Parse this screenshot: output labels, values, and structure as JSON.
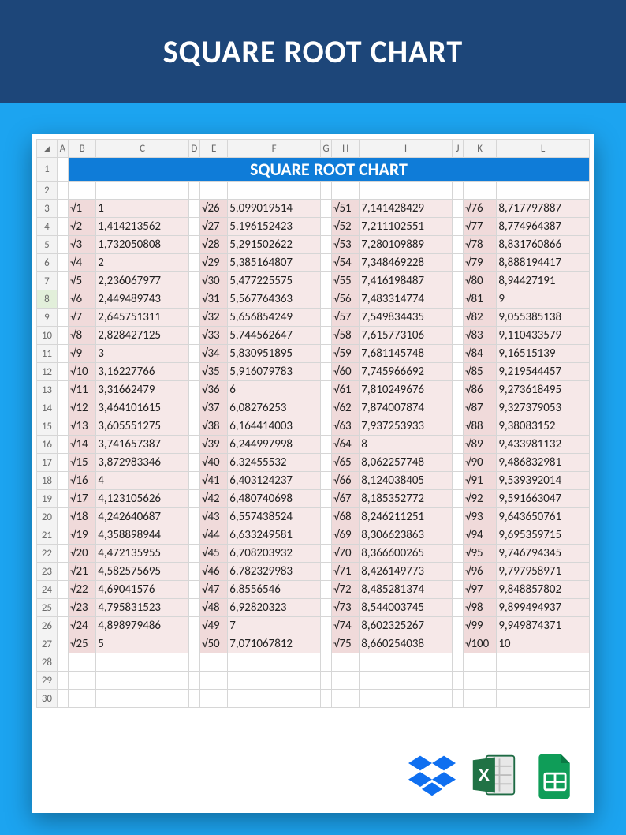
{
  "page": {
    "title": "SQUARE ROOT CHART",
    "background_color": "#1ca4f0",
    "header_bg": "#1d4679",
    "header_text_color": "#ffffff"
  },
  "spreadsheet": {
    "chart_title": "SQUARE ROOT CHART",
    "chart_title_bg": "#0f7cd8",
    "chart_title_color": "#ffffff",
    "column_headers": [
      "A",
      "B",
      "C",
      "D",
      "E",
      "F",
      "G",
      "H",
      "I",
      "J",
      "K",
      "L"
    ],
    "row_count": 30,
    "selected_row": 8,
    "cell_bg_label": "#f0dada",
    "cell_bg_value": "#f6e8e8",
    "gridline_color": "#d6d6d6",
    "header_bg": "#f3f3f3",
    "header_fg": "#6a6a6a",
    "font_size_pt": 11,
    "data_start_row": 3,
    "groups": [
      {
        "label_col": "B",
        "value_col": "C",
        "rows": [
          {
            "n": "√1",
            "v": "1"
          },
          {
            "n": "√2",
            "v": "1,414213562"
          },
          {
            "n": "√3",
            "v": "1,732050808"
          },
          {
            "n": "√4",
            "v": "2"
          },
          {
            "n": "√5",
            "v": "2,236067977"
          },
          {
            "n": "√6",
            "v": "2,449489743"
          },
          {
            "n": "√7",
            "v": "2,645751311"
          },
          {
            "n": "√8",
            "v": "2,828427125"
          },
          {
            "n": "√9",
            "v": "3"
          },
          {
            "n": "√10",
            "v": "3,16227766"
          },
          {
            "n": "√11",
            "v": "3,31662479"
          },
          {
            "n": "√12",
            "v": "3,464101615"
          },
          {
            "n": "√13",
            "v": "3,605551275"
          },
          {
            "n": "√14",
            "v": "3,741657387"
          },
          {
            "n": "√15",
            "v": "3,872983346"
          },
          {
            "n": "√16",
            "v": "4"
          },
          {
            "n": "√17",
            "v": "4,123105626"
          },
          {
            "n": "√18",
            "v": "4,242640687"
          },
          {
            "n": "√19",
            "v": "4,358898944"
          },
          {
            "n": "√20",
            "v": "4,472135955"
          },
          {
            "n": "√21",
            "v": "4,582575695"
          },
          {
            "n": "√22",
            "v": "4,69041576"
          },
          {
            "n": "√23",
            "v": "4,795831523"
          },
          {
            "n": "√24",
            "v": "4,898979486"
          },
          {
            "n": "√25",
            "v": "5"
          }
        ]
      },
      {
        "label_col": "E",
        "value_col": "F",
        "rows": [
          {
            "n": "√26",
            "v": "5,099019514"
          },
          {
            "n": "√27",
            "v": "5,196152423"
          },
          {
            "n": "√28",
            "v": "5,291502622"
          },
          {
            "n": "√29",
            "v": "5,385164807"
          },
          {
            "n": "√30",
            "v": "5,477225575"
          },
          {
            "n": "√31",
            "v": "5,567764363"
          },
          {
            "n": "√32",
            "v": "5,656854249"
          },
          {
            "n": "√33",
            "v": "5,744562647"
          },
          {
            "n": "√34",
            "v": "5,830951895"
          },
          {
            "n": "√35",
            "v": "5,916079783"
          },
          {
            "n": "√36",
            "v": "6"
          },
          {
            "n": "√37",
            "v": "6,08276253"
          },
          {
            "n": "√38",
            "v": "6,164414003"
          },
          {
            "n": "√39",
            "v": "6,244997998"
          },
          {
            "n": "√40",
            "v": "6,32455532"
          },
          {
            "n": "√41",
            "v": "6,403124237"
          },
          {
            "n": "√42",
            "v": "6,480740698"
          },
          {
            "n": "√43",
            "v": "6,557438524"
          },
          {
            "n": "√44",
            "v": "6,633249581"
          },
          {
            "n": "√45",
            "v": "6,708203932"
          },
          {
            "n": "√46",
            "v": "6,782329983"
          },
          {
            "n": "√47",
            "v": "6,8556546"
          },
          {
            "n": "√48",
            "v": "6,92820323"
          },
          {
            "n": "√49",
            "v": "7"
          },
          {
            "n": "√50",
            "v": "7,071067812"
          }
        ]
      },
      {
        "label_col": "H",
        "value_col": "I",
        "rows": [
          {
            "n": "√51",
            "v": "7,141428429"
          },
          {
            "n": "√52",
            "v": "7,211102551"
          },
          {
            "n": "√53",
            "v": "7,280109889"
          },
          {
            "n": "√54",
            "v": "7,348469228"
          },
          {
            "n": "√55",
            "v": "7,416198487"
          },
          {
            "n": "√56",
            "v": "7,483314774"
          },
          {
            "n": "√57",
            "v": "7,549834435"
          },
          {
            "n": "√58",
            "v": "7,615773106"
          },
          {
            "n": "√59",
            "v": "7,681145748"
          },
          {
            "n": "√60",
            "v": "7,745966692"
          },
          {
            "n": "√61",
            "v": "7,810249676"
          },
          {
            "n": "√62",
            "v": "7,874007874"
          },
          {
            "n": "√63",
            "v": "7,937253933"
          },
          {
            "n": "√64",
            "v": "8"
          },
          {
            "n": "√65",
            "v": "8,062257748"
          },
          {
            "n": "√66",
            "v": "8,124038405"
          },
          {
            "n": "√67",
            "v": "8,185352772"
          },
          {
            "n": "√68",
            "v": "8,246211251"
          },
          {
            "n": "√69",
            "v": "8,306623863"
          },
          {
            "n": "√70",
            "v": "8,366600265"
          },
          {
            "n": "√71",
            "v": "8,426149773"
          },
          {
            "n": "√72",
            "v": "8,485281374"
          },
          {
            "n": "√73",
            "v": "8,544003745"
          },
          {
            "n": "√74",
            "v": "8,602325267"
          },
          {
            "n": "√75",
            "v": "8,660254038"
          }
        ]
      },
      {
        "label_col": "K",
        "value_col": "L",
        "rows": [
          {
            "n": "√76",
            "v": "8,717797887"
          },
          {
            "n": "√77",
            "v": "8,774964387"
          },
          {
            "n": "√78",
            "v": "8,831760866"
          },
          {
            "n": "√79",
            "v": "8,888194417"
          },
          {
            "n": "√80",
            "v": "8,94427191"
          },
          {
            "n": "√81",
            "v": "9"
          },
          {
            "n": "√82",
            "v": "9,055385138"
          },
          {
            "n": "√83",
            "v": "9,110433579"
          },
          {
            "n": "√84",
            "v": "9,16515139"
          },
          {
            "n": "√85",
            "v": "9,219544457"
          },
          {
            "n": "√86",
            "v": "9,273618495"
          },
          {
            "n": "√87",
            "v": "9,327379053"
          },
          {
            "n": "√88",
            "v": "9,38083152"
          },
          {
            "n": "√89",
            "v": "9,433981132"
          },
          {
            "n": "√90",
            "v": "9,486832981"
          },
          {
            "n": "√91",
            "v": "9,539392014"
          },
          {
            "n": "√92",
            "v": "9,591663047"
          },
          {
            "n": "√93",
            "v": "9,643650761"
          },
          {
            "n": "√94",
            "v": "9,695359715"
          },
          {
            "n": "√95",
            "v": "9,746794345"
          },
          {
            "n": "√96",
            "v": "9,797958971"
          },
          {
            "n": "√97",
            "v": "9,848857802"
          },
          {
            "n": "√98",
            "v": "9,899494937"
          },
          {
            "n": "√99",
            "v": "9,949874371"
          },
          {
            "n": "√100",
            "v": "10"
          }
        ]
      }
    ]
  },
  "icons": {
    "dropbox_color": "#0f6ff0",
    "excel_color": "#207245",
    "sheets_color": "#0f9d58"
  }
}
